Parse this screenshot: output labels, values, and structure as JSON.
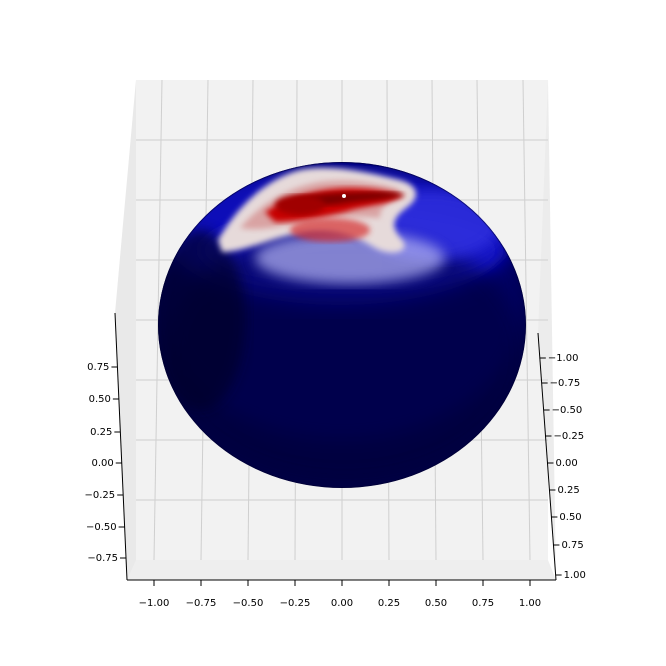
{
  "chart_data": {
    "type": "surface3d",
    "title": "",
    "surface": "sphere",
    "colormap": "seismic",
    "colormap_colors": [
      "#000033",
      "#0000b4",
      "#ffffff",
      "#c80000",
      "#800000"
    ],
    "pane_color": "#f2f2f2",
    "grid": true,
    "x_axis": {
      "label": "",
      "range": [
        -1.0,
        1.0
      ],
      "ticks": [
        "−1.00",
        "−0.75",
        "−0.50",
        "−0.25",
        "0.00",
        "0.25",
        "0.50",
        "0.75",
        "1.00"
      ]
    },
    "y_axis": {
      "label": "",
      "range": [
        -1.0,
        1.0
      ],
      "ticks": [
        "−1.00",
        "−0.75",
        "−0.50",
        "−0.25",
        "0.00",
        "0.25",
        "0.50",
        "0.75",
        "1.00"
      ]
    },
    "z_axis": {
      "label": "",
      "range": [
        -0.75,
        0.75
      ],
      "ticks": [
        "−0.75",
        "−0.50",
        "−0.25",
        "0.00",
        "0.25",
        "0.50",
        "0.75"
      ]
    }
  }
}
